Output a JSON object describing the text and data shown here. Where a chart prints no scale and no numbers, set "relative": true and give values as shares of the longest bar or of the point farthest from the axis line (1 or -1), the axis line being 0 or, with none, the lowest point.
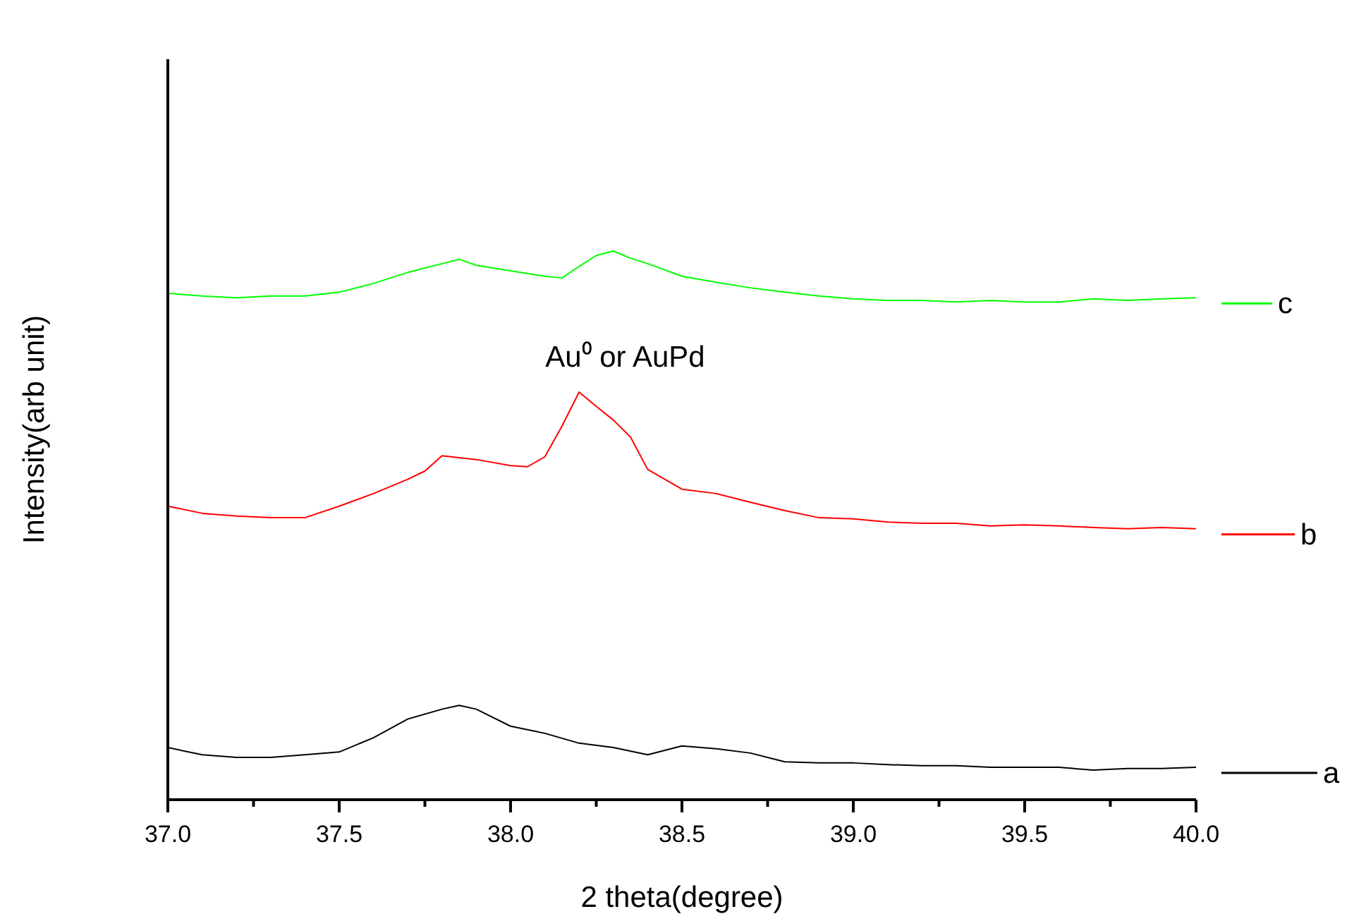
{
  "chart_data": {
    "type": "line",
    "relative": true,
    "xlabel": "2 theta(degree)",
    "ylabel": "Intensity(arb unit)",
    "xlim": [
      37,
      40
    ],
    "xticks": [
      {
        "value": 37,
        "label": "37.0"
      },
      {
        "value": 37.25,
        "label": null
      },
      {
        "value": 37.5,
        "label": "37.5"
      },
      {
        "value": 37.75,
        "label": null
      },
      {
        "value": 38,
        "label": "38.0"
      },
      {
        "value": 38.25,
        "label": null
      },
      {
        "value": 38.5,
        "label": "38.5"
      },
      {
        "value": 38.75,
        "label": null
      },
      {
        "value": 39,
        "label": "39.0"
      },
      {
        "value": 39.25,
        "label": null
      },
      {
        "value": 39.5,
        "label": "39.5"
      },
      {
        "value": 39.75,
        "label": null
      },
      {
        "value": 40,
        "label": "40.0"
      }
    ],
    "legend": "right",
    "grid": false,
    "marker": "none",
    "line_style": "solid",
    "annotations": [
      {
        "text": "Au⁰ or AuPd",
        "x": 38.2,
        "y": 0.743
      }
    ],
    "series": [
      {
        "name": "a",
        "color": "#000000",
        "x": [
          37,
          37.1,
          37.2,
          37.3,
          37.4,
          37.5,
          37.6,
          37.7,
          37.8,
          37.85,
          37.9,
          38,
          38.1,
          38.2,
          38.3,
          38.4,
          38.5,
          38.6,
          38.7,
          38.8,
          38.9,
          39,
          39.1,
          39.2,
          39.3,
          39.4,
          39.5,
          39.6,
          39.7,
          39.8,
          39.9,
          40
        ],
        "values": [
          0.095,
          0.082,
          0.077,
          0.077,
          0.082,
          0.087,
          0.113,
          0.147,
          0.165,
          0.172,
          0.165,
          0.134,
          0.121,
          0.103,
          0.095,
          0.082,
          0.098,
          0.093,
          0.085,
          0.069,
          0.067,
          0.067,
          0.064,
          0.062,
          0.062,
          0.059,
          0.059,
          0.059,
          0.054,
          0.057,
          0.057,
          0.059
        ]
      },
      {
        "name": "b",
        "color": "#ff0000",
        "x": [
          37,
          37.1,
          37.2,
          37.3,
          37.4,
          37.5,
          37.6,
          37.7,
          37.75,
          37.8,
          37.9,
          38,
          38.05,
          38.1,
          38.15,
          38.2,
          38.25,
          38.3,
          38.35,
          38.4,
          38.5,
          38.6,
          38.7,
          38.8,
          38.9,
          39,
          39.1,
          39.2,
          39.3,
          39.4,
          39.5,
          39.6,
          39.7,
          39.8,
          39.9,
          40
        ],
        "values": [
          0.535,
          0.522,
          0.517,
          0.514,
          0.514,
          0.535,
          0.558,
          0.584,
          0.599,
          0.627,
          0.62,
          0.609,
          0.607,
          0.625,
          0.681,
          0.743,
          0.717,
          0.692,
          0.661,
          0.602,
          0.566,
          0.558,
          0.542,
          0.527,
          0.514,
          0.512,
          0.506,
          0.504,
          0.504,
          0.499,
          0.501,
          0.499,
          0.496,
          0.494,
          0.496,
          0.494
        ]
      },
      {
        "name": "c",
        "color": "#00ff00",
        "x": [
          37,
          37.1,
          37.2,
          37.3,
          37.4,
          37.5,
          37.6,
          37.7,
          37.8,
          37.85,
          37.9,
          38,
          38.1,
          38.15,
          38.2,
          38.25,
          38.3,
          38.35,
          38.4,
          38.5,
          38.6,
          38.7,
          38.8,
          38.9,
          39,
          39.1,
          39.2,
          39.3,
          39.4,
          39.5,
          39.6,
          39.7,
          39.8,
          39.9,
          40
        ],
        "values": [
          0.923,
          0.918,
          0.915,
          0.918,
          0.918,
          0.925,
          0.941,
          0.961,
          0.977,
          0.985,
          0.974,
          0.964,
          0.954,
          0.951,
          0.972,
          0.992,
          1,
          0.987,
          0.977,
          0.954,
          0.943,
          0.933,
          0.925,
          0.918,
          0.913,
          0.91,
          0.91,
          0.907,
          0.91,
          0.907,
          0.907,
          0.913,
          0.91,
          0.913,
          0.915
        ]
      }
    ]
  }
}
